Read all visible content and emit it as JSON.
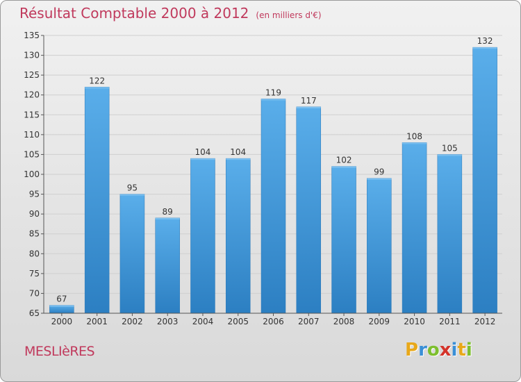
{
  "title": "Résultat Comptable 2000 à 2012",
  "subtitle": "(en milliers d'€)",
  "commune": "MESLIèRES",
  "logo": {
    "text": "Proxiti",
    "letters": [
      "P",
      "r",
      "o",
      "x",
      "i",
      "t",
      "i"
    ],
    "colors": [
      "#e8a81a",
      "#3a8fd6",
      "#7dbf2e",
      "#d4332a",
      "#3a8fd6",
      "#e8a81a",
      "#7dbf2e"
    ]
  },
  "colors": {
    "bar": "#4a9ee0",
    "bar_dark": "#2a7fc4",
    "title": "#c0395c",
    "grid": "#cfcfcf",
    "text": "#333333"
  },
  "chart_data": {
    "type": "bar",
    "title": "Résultat Comptable 2000 à 2012",
    "subtitle": "(en milliers d'€)",
    "categories": [
      "2000",
      "2001",
      "2002",
      "2003",
      "2004",
      "2005",
      "2006",
      "2007",
      "2008",
      "2009",
      "2010",
      "2011",
      "2012"
    ],
    "values": [
      67,
      122,
      95,
      89,
      104,
      104,
      119,
      117,
      102,
      99,
      108,
      105,
      132
    ],
    "ylim": [
      65,
      135
    ],
    "yticks": [
      65,
      70,
      75,
      80,
      85,
      90,
      95,
      100,
      105,
      110,
      115,
      120,
      125,
      130,
      135
    ],
    "xlabel": "",
    "ylabel": "",
    "grid": true
  }
}
